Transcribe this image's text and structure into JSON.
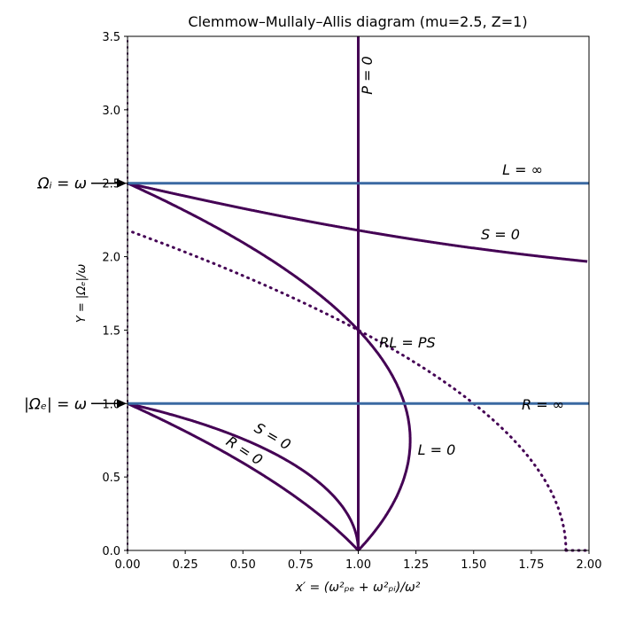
{
  "chart_data": {
    "type": "line",
    "title": "Clemmow–Mullaly–Allis diagram (mu=2.5, Z=1)",
    "xlabel": "x′ = (ω²ₚₑ + ω²ₚᵢ)/ω²",
    "ylabel": "Y = |Ωₑ|/ω",
    "xlim": [
      0,
      2
    ],
    "ylim": [
      0,
      3.5
    ],
    "grid": false,
    "mu": 2.5,
    "Z": 1,
    "xticks": [
      "0.00",
      "0.25",
      "0.50",
      "0.75",
      "1.00",
      "1.25",
      "1.50",
      "1.75",
      "2.00"
    ],
    "yticks": [
      "0.0",
      "0.5",
      "1.0",
      "1.5",
      "2.0",
      "2.5",
      "3.0",
      "3.5"
    ],
    "colors": {
      "cutoff": "#440154",
      "resonance": "#3a69a2"
    },
    "series": [
      {
        "label": "P = 0",
        "kind": "cutoff",
        "equation": "x' = 1"
      },
      {
        "label": "L = ∞",
        "kind": "resonance",
        "equation": "Y = 2.5"
      },
      {
        "label": "R = ∞",
        "kind": "resonance",
        "equation": "Y = 1"
      },
      {
        "label": "S = 0",
        "kind": "resonance",
        "equation": "x' = (1+1/mu)/(1/(1-Y²)+mu/(mu²-Y²))",
        "branch": "upper"
      },
      {
        "label": "S = 0",
        "kind": "resonance",
        "equation": "x' = (1+1/mu)/(1/(1-Y²)+mu/(mu²-Y²))",
        "branch": "lower"
      },
      {
        "label": "R = 0",
        "kind": "cutoff",
        "equation": "x' = (1+1/mu)/(1/(1-Y)+1/(mu+Y))"
      },
      {
        "label": "L = 0",
        "kind": "cutoff",
        "equation": "x' = (1+1/mu)/(1/(1+Y)+1/(mu-Y))"
      },
      {
        "label": "RL = PS",
        "kind": "dotted",
        "equation": "RL = PS"
      }
    ],
    "annotations": [
      {
        "text": "Ωᵢ = ω",
        "y": 2.5
      },
      {
        "text": "|Ωₑ| = ω",
        "y": 1.0
      }
    ]
  }
}
